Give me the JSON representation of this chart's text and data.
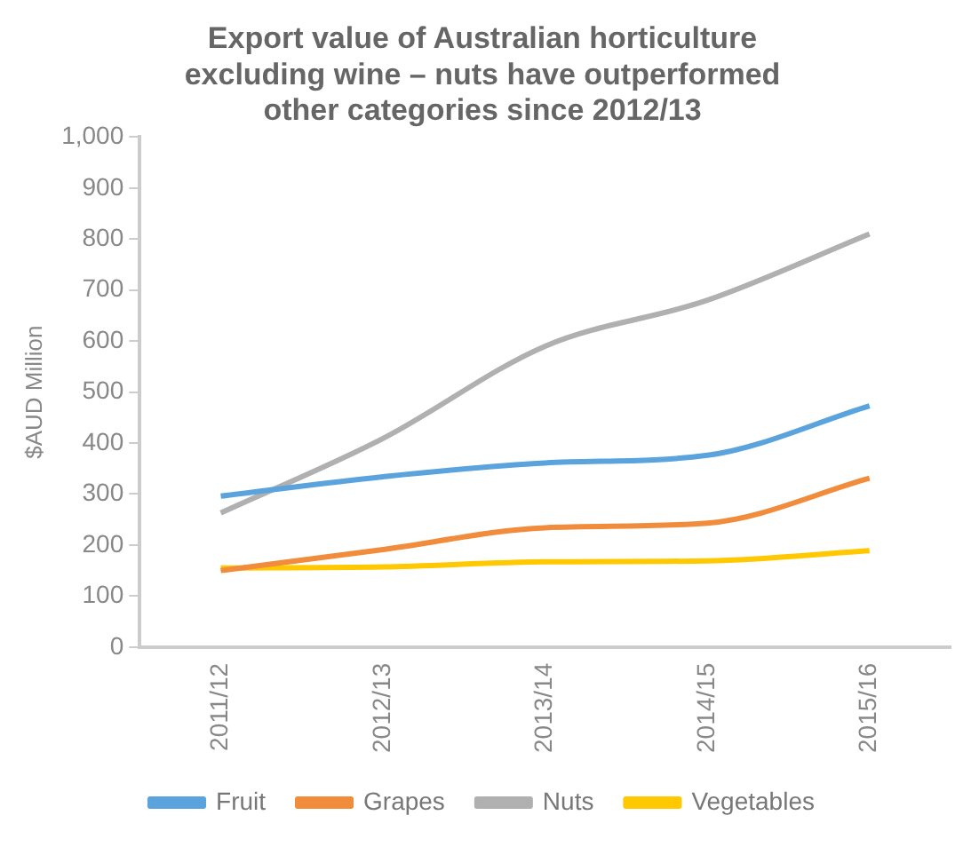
{
  "chart_data": {
    "type": "line",
    "title": "Export value of Australian horticulture excluding wine – nuts have outperformed other categories since 2012/13",
    "ylabel": "$AUD Million",
    "categories": [
      "2011/12",
      "2012/13",
      "2013/14",
      "2014/15",
      "2015/16"
    ],
    "series": [
      {
        "name": "Fruit",
        "color": "#5ba3dc",
        "values": [
          296,
          334,
          361,
          376,
          473
        ]
      },
      {
        "name": "Grapes",
        "color": "#f08c3c",
        "values": [
          150,
          191,
          234,
          243,
          331
        ]
      },
      {
        "name": "Nuts",
        "color": "#b0b0b0",
        "values": [
          263,
          409,
          590,
          680,
          810
        ]
      },
      {
        "name": "Vegetables",
        "color": "#ffc800",
        "values": [
          155,
          157,
          167,
          169,
          189
        ]
      }
    ],
    "ylim": [
      0,
      1000
    ],
    "yticks": [
      0,
      {
        "value": 100,
        "label": "100"
      },
      200,
      300,
      400,
      500,
      600,
      700,
      800,
      900,
      {
        "value": 1000,
        "label": "1,000"
      }
    ],
    "grid": false,
    "legend": "bottom",
    "marker": "none",
    "line_style": "solid"
  }
}
